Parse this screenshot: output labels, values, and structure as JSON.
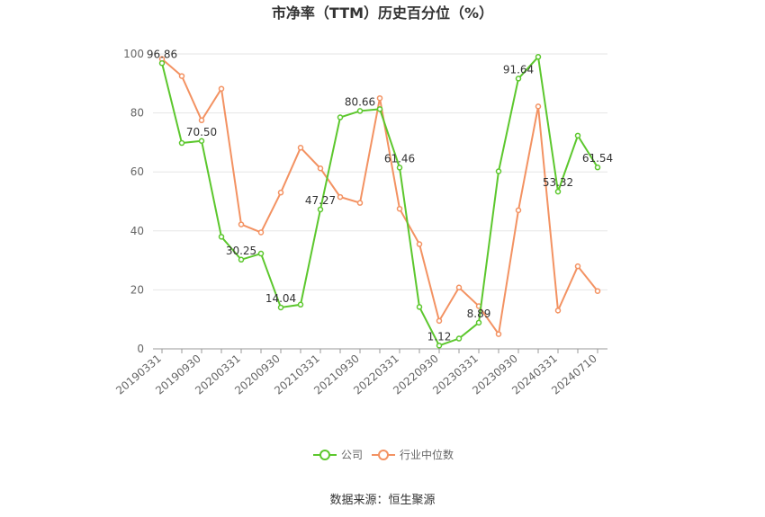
{
  "chart_data": {
    "type": "line",
    "title": "市净率（TTM）历史百分位（%）",
    "source_text": "数据来源：恒生聚源",
    "ylim": [
      0,
      100
    ],
    "y_ticks": [
      "0",
      "20",
      "40",
      "60",
      "80",
      "100"
    ],
    "x_tick_labels": [
      "20190331",
      "20190930",
      "20200331",
      "20200930",
      "20210331",
      "20210930",
      "20220331",
      "20220930",
      "20230331",
      "20230930",
      "20240331",
      "20240710"
    ],
    "series": [
      {
        "name": "公司",
        "color": "#5cc72d",
        "values": [
          96.86,
          69.8,
          70.5,
          38.0,
          30.25,
          32.3,
          14.04,
          15.0,
          47.27,
          78.5,
          80.66,
          81.3,
          61.46,
          14.2,
          1.12,
          3.5,
          8.89,
          60.2,
          91.64,
          99.0,
          53.32,
          72.3,
          61.54
        ],
        "labels": [
          "96.86",
          "",
          "70.50",
          "",
          "30.25",
          "",
          "14.04",
          "",
          "47.27",
          "",
          "80.66",
          "",
          "61.46",
          "",
          "1.12",
          "",
          "8.89",
          "",
          "91.64",
          "",
          "53.32",
          "",
          "61.54"
        ]
      },
      {
        "name": "行业中位数",
        "color": "#f39262",
        "values": [
          98.3,
          92.5,
          77.5,
          88.2,
          42.2,
          39.5,
          53.0,
          68.2,
          61.2,
          51.5,
          49.5,
          85.0,
          47.5,
          35.5,
          9.5,
          20.8,
          14.5,
          5.0,
          47.0,
          82.2,
          13.0,
          28.0,
          19.6
        ]
      }
    ],
    "legend_position": "bottom",
    "grid": true
  }
}
